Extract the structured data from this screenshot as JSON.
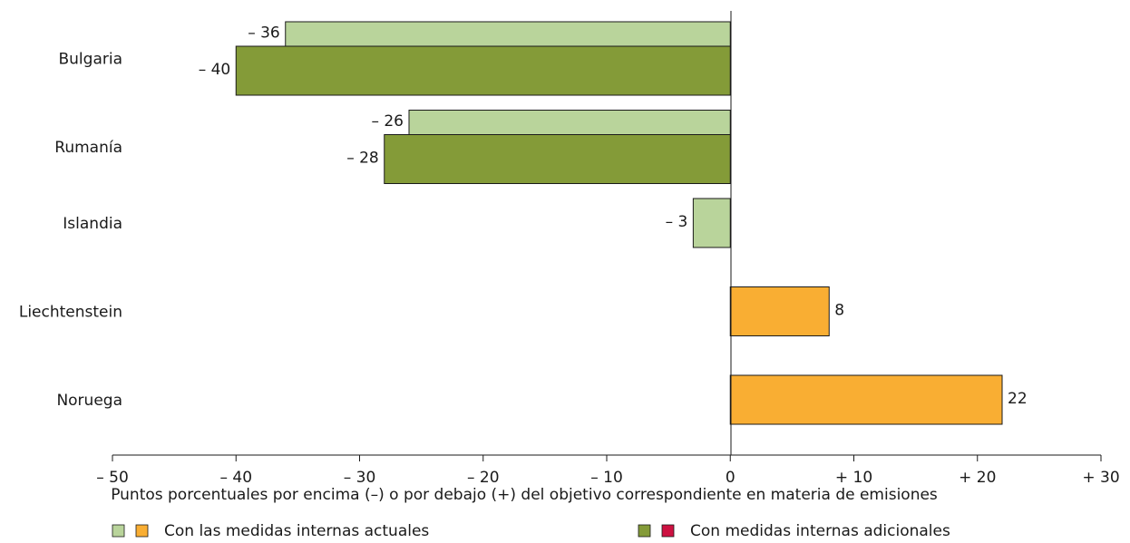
{
  "chart_data": {
    "type": "bar",
    "orientation": "horizontal",
    "categories": [
      "Bulgaria",
      "Rumanía",
      "Islandia",
      "Liechtenstein",
      "Noruega"
    ],
    "series": [
      {
        "name": "Con las medidas internas actuales",
        "values": [
          -36,
          -26,
          -3,
          8,
          22
        ],
        "value_labels": [
          "– 36",
          "– 26",
          "– 3",
          "8",
          "22"
        ],
        "color_negative": "#b9d49b",
        "color_positive": "#f9ae33"
      },
      {
        "name": "Con medidas internas adicionales",
        "values": [
          -40,
          -28,
          null,
          null,
          null
        ],
        "value_labels": [
          "– 40",
          "– 28",
          null,
          null,
          null
        ],
        "color_negative": "#849b38",
        "color_positive": "#cd1141"
      }
    ],
    "xlim": [
      -50,
      30
    ],
    "xticks": [
      -50,
      -40,
      -30,
      -20,
      -10,
      0,
      10,
      20,
      30
    ],
    "xtick_labels": [
      "– 50",
      "– 40",
      "– 30",
      "– 20",
      "– 10",
      "0",
      "+ 10",
      "+ 20",
      "+ 30"
    ],
    "xlabel": "Puntos porcentuales por encima (–) o por debajo (+) del objetivo correspondiente en materia de emisiones",
    "legend": [
      {
        "label": "Con las medidas internas actuales",
        "colors": [
          "#b9d49b",
          "#f9ae33"
        ]
      },
      {
        "label": "Con medidas internas adicionales",
        "colors": [
          "#849b38",
          "#cd1141"
        ]
      }
    ],
    "legend_position": "bottom",
    "grid": false
  }
}
